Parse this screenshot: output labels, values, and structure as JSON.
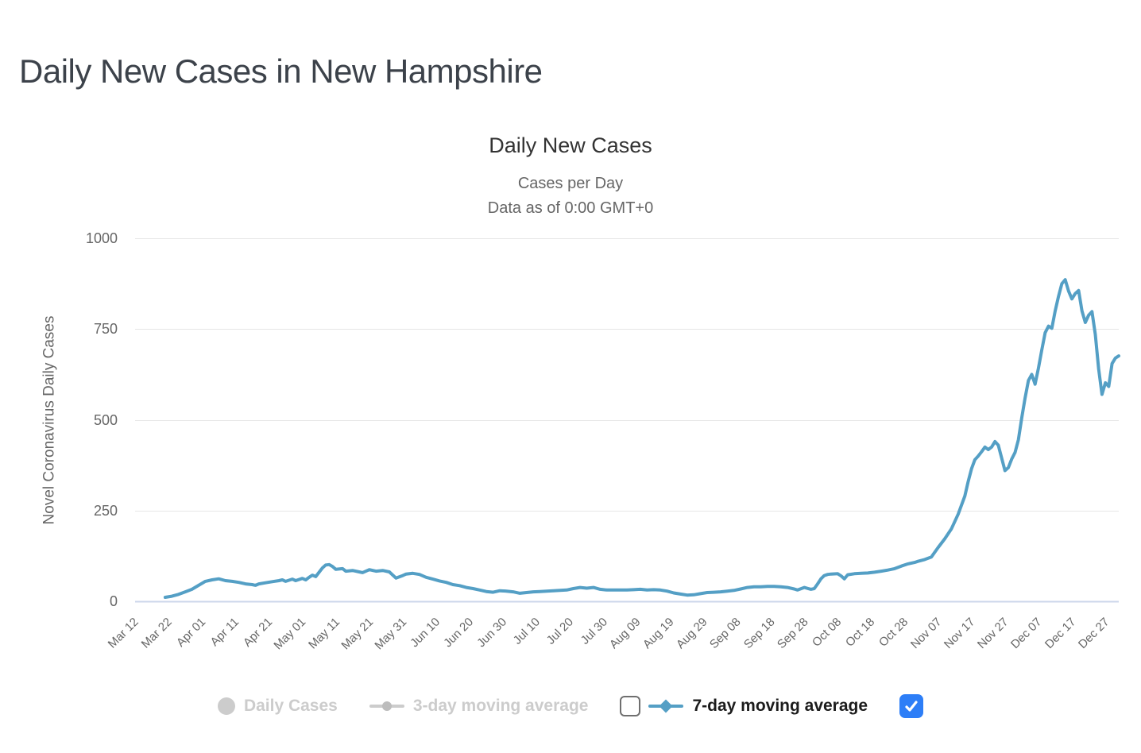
{
  "page": {
    "title": "Daily New Cases in New Hampshire"
  },
  "chart": {
    "subtitle_lines": [
      "Cases per Day",
      "Data as of 0:00 GMT+0"
    ]
  },
  "legend": {
    "items": [
      {
        "label": "Daily Cases",
        "marker": "circle",
        "color": "#cccccc",
        "enabled": false
      },
      {
        "label": "3-day moving average",
        "marker": "line-circle",
        "color": "#cccccc",
        "enabled": false,
        "checkbox": "unchecked"
      },
      {
        "label": "7-day moving average",
        "marker": "line-diamond",
        "color": "#549fc5",
        "enabled": true,
        "checkbox": "checked"
      }
    ],
    "checkbox_checked_color": "#2d7ef7"
  },
  "colors": {
    "series_line": "#549fc5",
    "gridline": "#e6e6e6",
    "axis_line": "#ccd6eb",
    "title_text": "#333333",
    "muted_text": "#666666"
  },
  "chart_data": {
    "type": "line",
    "title": "Daily New Cases",
    "subtitle": "Cases per Day — Data as of 0:00 GMT+0",
    "xlabel": "",
    "ylabel": "Novel Coronavirus Daily Cases",
    "ylim": [
      0,
      1000
    ],
    "y_ticks": [
      0,
      250,
      500,
      750,
      1000
    ],
    "x_ticks": [
      "Mar 12",
      "Mar 22",
      "Apr 01",
      "Apr 11",
      "Apr 21",
      "May 01",
      "May 11",
      "May 21",
      "May 31",
      "Jun 10",
      "Jun 20",
      "Jun 30",
      "Jul 10",
      "Jul 20",
      "Jul 30",
      "Aug 09",
      "Aug 19",
      "Aug 29",
      "Sep 08",
      "Sep 18",
      "Sep 28",
      "Oct 08",
      "Oct 18",
      "Oct 28",
      "Nov 07",
      "Nov 17",
      "Nov 27",
      "Dec 07",
      "Dec 17",
      "Dec 27"
    ],
    "x_range": [
      "Mar 12",
      "Dec 31"
    ],
    "grid": true,
    "legend_position": "bottom",
    "series": [
      {
        "name": "Daily Cases",
        "visible": false
      },
      {
        "name": "3-day moving average",
        "visible": false
      },
      {
        "name": "7-day moving average",
        "visible": true,
        "color": "#549fc5",
        "points": [
          [
            "Mar 21",
            11
          ],
          [
            "Mar 23",
            14
          ],
          [
            "Mar 25",
            19
          ],
          [
            "Mar 27",
            26
          ],
          [
            "Mar 29",
            33
          ],
          [
            "Mar 31",
            44
          ],
          [
            "Apr 02",
            55
          ],
          [
            "Apr 04",
            59
          ],
          [
            "Apr 06",
            62
          ],
          [
            "Apr 08",
            57
          ],
          [
            "Apr 10",
            55
          ],
          [
            "Apr 12",
            52
          ],
          [
            "Apr 14",
            48
          ],
          [
            "Apr 16",
            46
          ],
          [
            "Apr 17",
            44
          ],
          [
            "Apr 18",
            48
          ],
          [
            "Apr 20",
            51
          ],
          [
            "Apr 22",
            54
          ],
          [
            "Apr 24",
            57
          ],
          [
            "Apr 25",
            59
          ],
          [
            "Apr 26",
            55
          ],
          [
            "Apr 28",
            61
          ],
          [
            "Apr 29",
            57
          ],
          [
            "May 01",
            63
          ],
          [
            "May 02",
            59
          ],
          [
            "May 03",
            66
          ],
          [
            "May 04",
            72
          ],
          [
            "May 05",
            68
          ],
          [
            "May 07",
            92
          ],
          [
            "May 08",
            100
          ],
          [
            "May 09",
            101
          ],
          [
            "May 10",
            96
          ],
          [
            "May 11",
            88
          ],
          [
            "May 13",
            90
          ],
          [
            "May 14",
            83
          ],
          [
            "May 16",
            85
          ],
          [
            "May 18",
            81
          ],
          [
            "May 19",
            79
          ],
          [
            "May 21",
            87
          ],
          [
            "May 23",
            83
          ],
          [
            "May 25",
            85
          ],
          [
            "May 27",
            81
          ],
          [
            "May 29",
            64
          ],
          [
            "May 31",
            71
          ],
          [
            "Jun 01",
            75
          ],
          [
            "Jun 03",
            77
          ],
          [
            "Jun 05",
            74
          ],
          [
            "Jun 07",
            66
          ],
          [
            "Jun 09",
            61
          ],
          [
            "Jun 11",
            56
          ],
          [
            "Jun 13",
            52
          ],
          [
            "Jun 15",
            46
          ],
          [
            "Jun 17",
            43
          ],
          [
            "Jun 19",
            38
          ],
          [
            "Jun 21",
            35
          ],
          [
            "Jun 23",
            31
          ],
          [
            "Jun 25",
            27
          ],
          [
            "Jun 27",
            25
          ],
          [
            "Jun 29",
            29
          ],
          [
            "Jul 01",
            28
          ],
          [
            "Jul 03",
            26
          ],
          [
            "Jul 05",
            22
          ],
          [
            "Jul 07",
            24
          ],
          [
            "Jul 09",
            26
          ],
          [
            "Jul 11",
            27
          ],
          [
            "Jul 13",
            28
          ],
          [
            "Jul 15",
            29
          ],
          [
            "Jul 17",
            30
          ],
          [
            "Jul 19",
            31
          ],
          [
            "Jul 21",
            35
          ],
          [
            "Jul 23",
            38
          ],
          [
            "Jul 25",
            36
          ],
          [
            "Jul 27",
            38
          ],
          [
            "Jul 29",
            33
          ],
          [
            "Jul 31",
            31
          ],
          [
            "Aug 02",
            31
          ],
          [
            "Aug 04",
            31
          ],
          [
            "Aug 06",
            31
          ],
          [
            "Aug 08",
            32
          ],
          [
            "Aug 10",
            33
          ],
          [
            "Aug 12",
            31
          ],
          [
            "Aug 14",
            32
          ],
          [
            "Aug 16",
            31
          ],
          [
            "Aug 18",
            28
          ],
          [
            "Aug 20",
            23
          ],
          [
            "Aug 22",
            20
          ],
          [
            "Aug 24",
            17
          ],
          [
            "Aug 26",
            18
          ],
          [
            "Aug 28",
            21
          ],
          [
            "Aug 30",
            24
          ],
          [
            "Sep 01",
            25
          ],
          [
            "Sep 03",
            26
          ],
          [
            "Sep 05",
            28
          ],
          [
            "Sep 07",
            30
          ],
          [
            "Sep 09",
            34
          ],
          [
            "Sep 11",
            38
          ],
          [
            "Sep 13",
            40
          ],
          [
            "Sep 15",
            40
          ],
          [
            "Sep 17",
            41
          ],
          [
            "Sep 19",
            41
          ],
          [
            "Sep 21",
            40
          ],
          [
            "Sep 23",
            38
          ],
          [
            "Sep 25",
            34
          ],
          [
            "Sep 26",
            31
          ],
          [
            "Sep 28",
            38
          ],
          [
            "Sep 30",
            33
          ],
          [
            "Oct 01",
            35
          ],
          [
            "Oct 02",
            48
          ],
          [
            "Oct 03",
            62
          ],
          [
            "Oct 04",
            71
          ],
          [
            "Oct 05",
            74
          ],
          [
            "Oct 06",
            75
          ],
          [
            "Oct 08",
            76
          ],
          [
            "Oct 09",
            70
          ],
          [
            "Oct 10",
            62
          ],
          [
            "Oct 11",
            73
          ],
          [
            "Oct 13",
            76
          ],
          [
            "Oct 15",
            77
          ],
          [
            "Oct 17",
            78
          ],
          [
            "Oct 19",
            80
          ],
          [
            "Oct 21",
            83
          ],
          [
            "Oct 23",
            86
          ],
          [
            "Oct 25",
            90
          ],
          [
            "Oct 27",
            97
          ],
          [
            "Oct 29",
            103
          ],
          [
            "Oct 31",
            107
          ],
          [
            "Nov 01",
            110
          ],
          [
            "Nov 03",
            115
          ],
          [
            "Nov 05",
            122
          ],
          [
            "Nov 07",
            148
          ],
          [
            "Nov 09",
            172
          ],
          [
            "Nov 11",
            200
          ],
          [
            "Nov 13",
            240
          ],
          [
            "Nov 15",
            290
          ],
          [
            "Nov 16",
            330
          ],
          [
            "Nov 17",
            365
          ],
          [
            "Nov 18",
            390
          ],
          [
            "Nov 19",
            400
          ],
          [
            "Nov 20",
            412
          ],
          [
            "Nov 21",
            425
          ],
          [
            "Nov 22",
            418
          ],
          [
            "Nov 23",
            425
          ],
          [
            "Nov 24",
            440
          ],
          [
            "Nov 25",
            430
          ],
          [
            "Nov 26",
            395
          ],
          [
            "Nov 27",
            360
          ],
          [
            "Nov 28",
            368
          ],
          [
            "Nov 29",
            392
          ],
          [
            "Nov 30",
            410
          ],
          [
            "Dec 01",
            445
          ],
          [
            "Dec 02",
            505
          ],
          [
            "Dec 03",
            560
          ],
          [
            "Dec 04",
            608
          ],
          [
            "Dec 05",
            625
          ],
          [
            "Dec 06",
            598
          ],
          [
            "Dec 07",
            642
          ],
          [
            "Dec 08",
            692
          ],
          [
            "Dec 09",
            740
          ],
          [
            "Dec 10",
            758
          ],
          [
            "Dec 11",
            752
          ],
          [
            "Dec 12",
            800
          ],
          [
            "Dec 13",
            840
          ],
          [
            "Dec 14",
            875
          ],
          [
            "Dec 15",
            886
          ],
          [
            "Dec 16",
            855
          ],
          [
            "Dec 17",
            833
          ],
          [
            "Dec 18",
            848
          ],
          [
            "Dec 19",
            856
          ],
          [
            "Dec 20",
            800
          ],
          [
            "Dec 21",
            768
          ],
          [
            "Dec 22",
            788
          ],
          [
            "Dec 23",
            798
          ],
          [
            "Dec 24",
            735
          ],
          [
            "Dec 25",
            640
          ],
          [
            "Dec 26",
            570
          ],
          [
            "Dec 27",
            602
          ],
          [
            "Dec 28",
            592
          ],
          [
            "Dec 29",
            655
          ],
          [
            "Dec 30",
            670
          ],
          [
            "Dec 31",
            676
          ]
        ]
      }
    ]
  }
}
